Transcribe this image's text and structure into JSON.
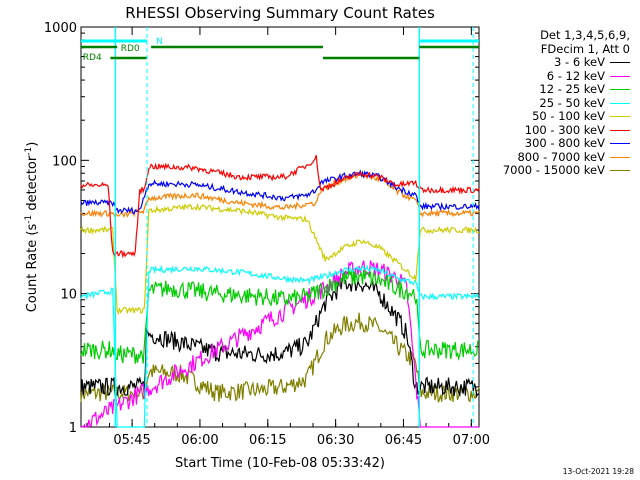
{
  "chart_data": {
    "type": "line",
    "title": "RHESSI Observing Summary Count Rates",
    "xlabel": "Start Time (10-Feb-08 05:33:42)",
    "ylabel_main": "Count Rate (s",
    "ylabel_sup1": "-1",
    "ylabel_mid": " detector",
    "ylabel_sup2": "-1",
    "ylabel_end": ")",
    "yscale": "log",
    "ylim": [
      1,
      1000
    ],
    "xlim_minutes_after_start": [
      0,
      88
    ],
    "x_tick_labels": [
      "05:45",
      "06:00",
      "06:15",
      "06:30",
      "06:45",
      "07:00"
    ],
    "y_tick_labels": [
      "1",
      "10",
      "100",
      "1000"
    ],
    "legend_header": [
      "Det 1,3,4,5,6,9,",
      "FDecim 1, Att 0"
    ],
    "series": [
      {
        "name": "3 - 6 keV",
        "color": "#000000",
        "x": [
          0,
          14,
          14.5,
          17,
          30,
          40,
          45,
          50,
          54,
          58,
          62,
          66,
          70,
          72,
          74,
          75,
          88
        ],
        "values": [
          2.0,
          2.0,
          5.0,
          4.8,
          3.6,
          3.5,
          3.6,
          4.2,
          8.5,
          12,
          12,
          10,
          6.5,
          5.0,
          2.0,
          2.0,
          2.0
        ]
      },
      {
        "name": "6 - 12 keV",
        "color": "#ff00ff",
        "x": [
          0,
          54,
          58,
          62,
          66,
          70,
          72,
          75,
          88
        ],
        "values": [
          1.0,
          11,
          14,
          16,
          15,
          13,
          11,
          1.0,
          1.0
        ]
      },
      {
        "name": "12 - 25 keV",
        "color": "#00cc00",
        "x": [
          0,
          7,
          8,
          14,
          15,
          20,
          30,
          40,
          45,
          50,
          54,
          58,
          62,
          66,
          70,
          74,
          75,
          88
        ],
        "values": [
          3.8,
          3.8,
          3.5,
          3.5,
          10.5,
          11,
          10,
          9.5,
          9.0,
          9.5,
          11,
          13,
          13.5,
          12.5,
          11,
          10,
          3.8,
          3.8
        ]
      },
      {
        "name": "25 - 50 keV",
        "color": "#00ffff",
        "x": [
          0,
          7,
          8,
          14,
          15,
          25,
          35,
          45,
          50,
          54,
          58,
          62,
          66,
          70,
          74,
          75,
          88
        ],
        "values": [
          9.5,
          10.5,
          1.0,
          1.0,
          15,
          15.5,
          14.5,
          13,
          12.5,
          13.5,
          15,
          15.5,
          15,
          13,
          12,
          9.5,
          9.5
        ]
      },
      {
        "name": "50 - 100 keV",
        "color": "#cccc00",
        "x": [
          0,
          7,
          8,
          14,
          15,
          25,
          35,
          45,
          50,
          54,
          58,
          62,
          66,
          70,
          74,
          75,
          88
        ],
        "values": [
          30,
          30,
          7.5,
          7.5,
          42,
          45,
          42,
          37,
          36,
          18,
          22,
          25,
          22,
          17,
          13,
          30,
          30
        ]
      },
      {
        "name": "100 - 300 keV",
        "color": "#ff0000",
        "x": [
          0,
          6,
          7,
          12,
          13,
          14,
          15,
          25,
          35,
          45,
          50,
          52,
          53,
          58,
          62,
          66,
          70,
          74,
          75,
          88
        ],
        "values": [
          65,
          65,
          20,
          20,
          60,
          60,
          90,
          88,
          75,
          75,
          92,
          105,
          60,
          72,
          80,
          75,
          65,
          68,
          60,
          60
        ]
      },
      {
        "name": "300 - 800 keV",
        "color": "#0000ff",
        "x": [
          0,
          7,
          8,
          13,
          14,
          15,
          25,
          35,
          45,
          50,
          52,
          53,
          58,
          62,
          66,
          70,
          74,
          75,
          88
        ],
        "values": [
          48,
          48,
          42,
          42,
          55,
          67,
          66,
          58,
          52,
          55,
          60,
          68,
          76,
          80,
          75,
          62,
          55,
          45,
          45
        ]
      },
      {
        "name": "800 - 7000 keV",
        "color": "#ff8000",
        "x": [
          0,
          7,
          8,
          14,
          15,
          25,
          35,
          45,
          50,
          52,
          53,
          58,
          62,
          66,
          70,
          74,
          75,
          88
        ],
        "values": [
          40,
          40,
          38,
          42,
          52,
          55,
          48,
          44,
          47,
          48,
          60,
          72,
          78,
          72,
          58,
          50,
          40,
          40
        ]
      },
      {
        "name": "7000 - 15000 keV",
        "color": "#808000",
        "x": [
          0,
          14,
          15,
          22,
          30,
          40,
          45,
          50,
          54,
          58,
          62,
          66,
          70,
          74,
          75,
          88
        ],
        "values": [
          1.8,
          1.8,
          2.6,
          2.5,
          1.8,
          1.9,
          2.0,
          2.3,
          4.5,
          5.8,
          6.2,
          5.5,
          4.0,
          3.0,
          1.8,
          1.8
        ]
      }
    ],
    "annotations": {
      "saa_label": "N",
      "rd0_label": "RD0",
      "rd4_label": "RD4"
    }
  },
  "footer_date": "13-Oct-2021 19:28"
}
